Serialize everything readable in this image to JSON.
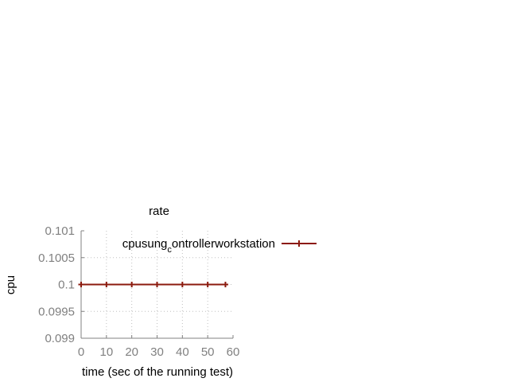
{
  "chart_data": {
    "type": "line",
    "title": "rate",
    "xlabel": "time (sec of the running test)",
    "ylabel": "cpu",
    "xlim": [
      0,
      60
    ],
    "ylim": [
      0.099,
      0.101
    ],
    "xticks": [
      "0",
      "10",
      "20",
      "30",
      "40",
      "50",
      "60"
    ],
    "yticks": [
      "0.101",
      "0.1005",
      "0.1",
      "0.0995",
      "0.099"
    ],
    "grid": true,
    "legend_position": "top-right",
    "series": [
      {
        "name": "cpu",
        "name_parts": [
          "cpu",
          "",
          "sung",
          "c",
          "ontroller",
          "w",
          "orkstation"
        ],
        "color": "#8b1a0e",
        "x": [
          0,
          10,
          20,
          30,
          40,
          50,
          57
        ],
        "y": [
          0.1,
          0.1,
          0.1,
          0.1,
          0.1,
          0.1,
          0.1
        ]
      }
    ]
  },
  "colors": {
    "axis": "#808080",
    "grid": "#c0c0c0",
    "series": "#8b1a0e"
  }
}
